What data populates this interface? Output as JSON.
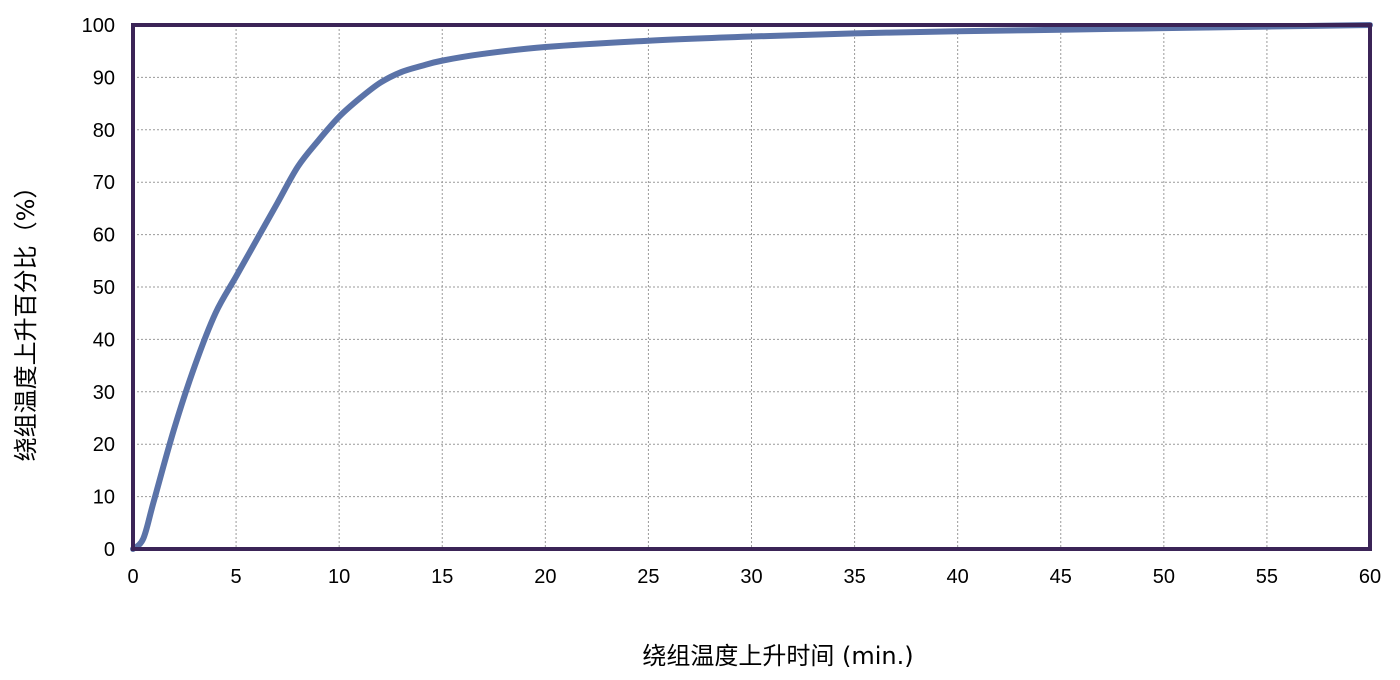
{
  "chart_data": {
    "type": "line",
    "title": "",
    "xlabel": "绕组温度上升时间 (min.)",
    "ylabel": "绕组温度上升百分比（%）",
    "xlim": [
      0,
      60
    ],
    "ylim": [
      0,
      100
    ],
    "x_ticks": [
      "0",
      "5",
      "10",
      "15",
      "20",
      "25",
      "30",
      "35",
      "40",
      "45",
      "50",
      "55",
      "60"
    ],
    "y_ticks": [
      "0",
      "10",
      "20",
      "30",
      "40",
      "50",
      "60",
      "70",
      "80",
      "90",
      "100"
    ],
    "grid": true,
    "legend": "none",
    "line_color": "#5b73a8",
    "frame_color": "#3b2457",
    "series": [
      {
        "x": [
          0,
          0.5,
          1,
          2,
          3,
          4,
          5,
          6,
          7,
          8,
          9,
          10,
          11,
          12,
          13,
          14,
          15,
          17,
          20,
          25,
          30,
          35,
          40,
          45,
          50,
          55,
          60
        ],
        "y": [
          0,
          2,
          9,
          23,
          35,
          45,
          52,
          59,
          66,
          73,
          78,
          82.5,
          86,
          89,
          91,
          92.2,
          93.2,
          94.5,
          95.8,
          97,
          97.8,
          98.4,
          98.8,
          99.1,
          99.4,
          99.7,
          100
        ]
      }
    ]
  }
}
